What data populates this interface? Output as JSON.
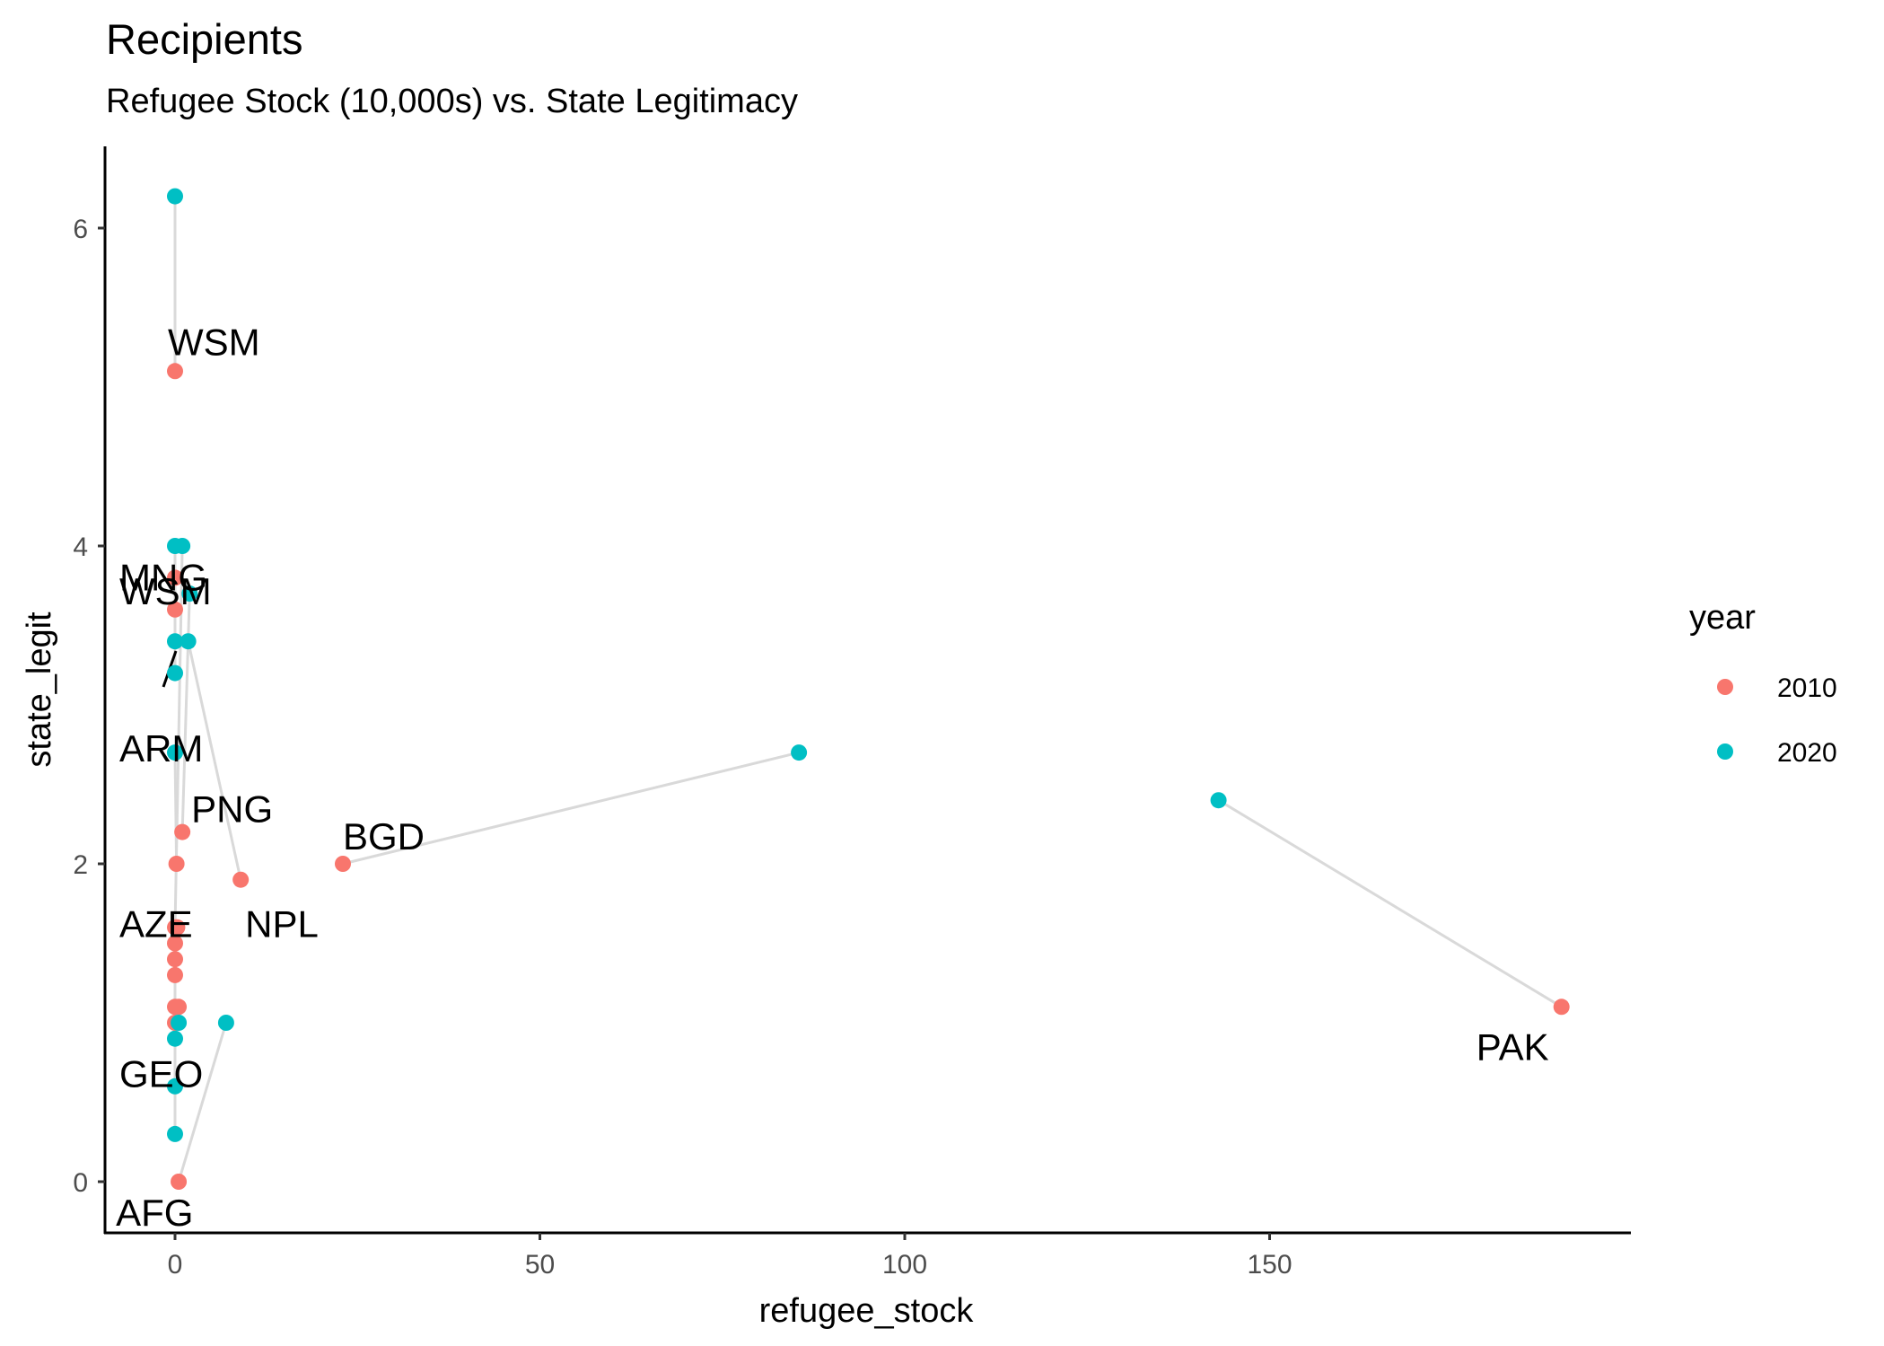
{
  "chart_data": {
    "type": "scatter",
    "title": "Recipients",
    "subtitle": "Refugee Stock (10,000s) vs. State Legitimacy",
    "xlabel": "refugee_stock",
    "ylabel": "state_legit",
    "xlim": [
      -9.5,
      199
    ],
    "ylim": [
      -0.3,
      6.5
    ],
    "xticks": [
      0,
      50,
      100,
      150
    ],
    "yticks": [
      0,
      2,
      4,
      6
    ],
    "grid": false,
    "legend": {
      "title": "year",
      "placement": "right",
      "entries": [
        {
          "label": "2010",
          "color": "#F8766D"
        },
        {
          "label": "2020",
          "color": "#00BFC4"
        }
      ]
    },
    "series": [
      {
        "name": "2010",
        "color": "#F8766D",
        "points": [
          {
            "x": 0.0,
            "y": 5.1
          },
          {
            "x": 0.0,
            "y": 3.8
          },
          {
            "x": 0.0,
            "y": 3.6
          },
          {
            "x": 1.0,
            "y": 2.2
          },
          {
            "x": 0.2,
            "y": 2.0
          },
          {
            "x": 9.0,
            "y": 1.9
          },
          {
            "x": 23.0,
            "y": 2.0
          },
          {
            "x": 190.0,
            "y": 1.1
          },
          {
            "x": 0.0,
            "y": 1.6
          },
          {
            "x": 0.3,
            "y": 1.6
          },
          {
            "x": 0.0,
            "y": 1.5
          },
          {
            "x": 0.0,
            "y": 1.4
          },
          {
            "x": 0.0,
            "y": 1.3
          },
          {
            "x": 0.0,
            "y": 1.1
          },
          {
            "x": 0.5,
            "y": 1.1
          },
          {
            "x": 0.0,
            "y": 1.0
          },
          {
            "x": 0.5,
            "y": 0.0
          }
        ]
      },
      {
        "name": "2020",
        "color": "#00BFC4",
        "points": [
          {
            "x": 0.0,
            "y": 6.2
          },
          {
            "x": 0.0,
            "y": 4.0
          },
          {
            "x": 1.0,
            "y": 4.0
          },
          {
            "x": 2.0,
            "y": 3.7
          },
          {
            "x": 0.0,
            "y": 3.4
          },
          {
            "x": 1.8,
            "y": 3.4
          },
          {
            "x": 0.0,
            "y": 3.2
          },
          {
            "x": 0.0,
            "y": 2.7
          },
          {
            "x": 85.5,
            "y": 2.7
          },
          {
            "x": 143.0,
            "y": 2.4
          },
          {
            "x": 7.0,
            "y": 1.0
          },
          {
            "x": 0.5,
            "y": 1.0
          },
          {
            "x": 0.0,
            "y": 0.9
          },
          {
            "x": 0.0,
            "y": 0.6
          },
          {
            "x": 0.0,
            "y": 0.3
          }
        ]
      }
    ],
    "connectors": [
      {
        "from": [
          0.0,
          5.1
        ],
        "to": [
          0.0,
          6.2
        ]
      },
      {
        "from": [
          0.0,
          3.8
        ],
        "to": [
          0.0,
          3.2
        ]
      },
      {
        "from": [
          0.0,
          3.6
        ],
        "to": [
          0.0,
          4.0
        ]
      },
      {
        "from": [
          1.0,
          2.2
        ],
        "to": [
          2.0,
          3.7
        ]
      },
      {
        "from": [
          9.0,
          1.9
        ],
        "to": [
          1.8,
          3.4
        ]
      },
      {
        "from": [
          23.0,
          2.0
        ],
        "to": [
          85.5,
          2.7
        ]
      },
      {
        "from": [
          190.0,
          1.1
        ],
        "to": [
          143.0,
          2.4
        ]
      },
      {
        "from": [
          0.2,
          2.0
        ],
        "to": [
          0.0,
          2.7
        ]
      },
      {
        "from": [
          0.0,
          1.6
        ],
        "to": [
          1.0,
          4.0
        ]
      },
      {
        "from": [
          0.0,
          1.0
        ],
        "to": [
          0.0,
          0.3
        ]
      },
      {
        "from": [
          0.5,
          0.0
        ],
        "to": [
          7.0,
          1.0
        ]
      },
      {
        "from": [
          0.5,
          1.1
        ],
        "to": [
          0.5,
          1.0
        ]
      },
      {
        "from": [
          0.0,
          1.3
        ],
        "to": [
          0.0,
          0.6
        ]
      }
    ],
    "labels": [
      {
        "text": "WSM",
        "x": 0.0,
        "y": 5.1
      },
      {
        "text": "MNG",
        "x": 0.0,
        "y": 3.8
      },
      {
        "text": "WSM",
        "x": 0.0,
        "y": 3.6
      },
      {
        "text": "ARM",
        "x": 0.0,
        "y": 3.4
      },
      {
        "text": "PNG",
        "x": 1.0,
        "y": 2.2
      },
      {
        "text": "BGD",
        "x": 23.0,
        "y": 2.0
      },
      {
        "text": "NPL",
        "x": 9.0,
        "y": 1.9
      },
      {
        "text": "AZE",
        "x": 0.0,
        "y": 1.9
      },
      {
        "text": "PAK",
        "x": 190.0,
        "y": 1.1
      },
      {
        "text": "GEO",
        "x": 0.0,
        "y": 0.9
      },
      {
        "text": "AFG",
        "x": 0.5,
        "y": 0.0
      }
    ]
  }
}
